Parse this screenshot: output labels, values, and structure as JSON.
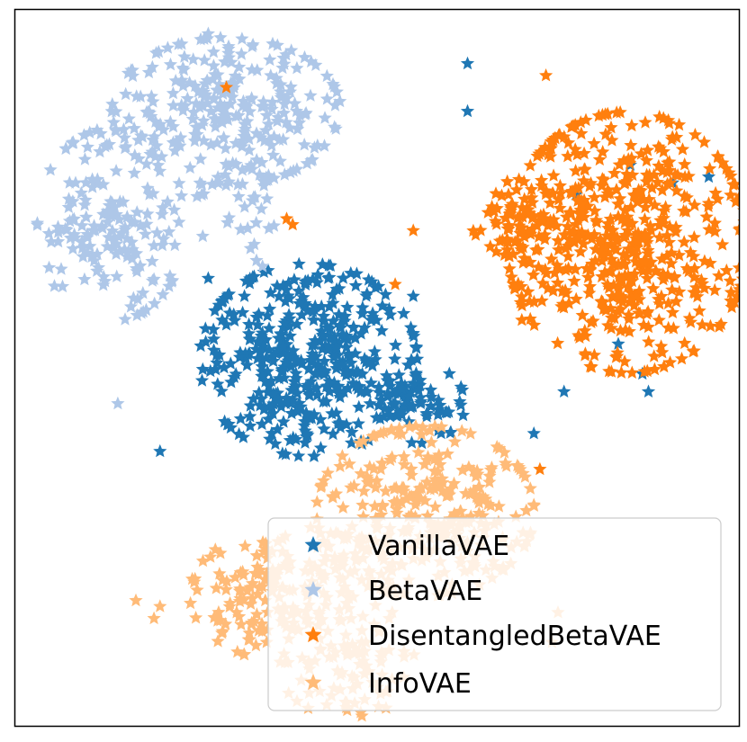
{
  "chart_data": {
    "type": "scatter",
    "marker": "star",
    "title": "",
    "xlabel": "",
    "ylabel": "",
    "xlim": [
      -60,
      60
    ],
    "ylim": [
      -60,
      60
    ],
    "grid": false,
    "ticks": false,
    "legend": {
      "placement": "lower-right",
      "entries": [
        "VanillaVAE",
        "BetaVAE",
        "DisentangledBetaVAE",
        "InfoVAE"
      ]
    },
    "series": [
      {
        "name": "VanillaVAE",
        "color": "#1f77b4",
        "clusters": [
          {
            "center": [
              -11.4,
              1.3
            ],
            "spread": [
              9.5,
              8.5
            ],
            "count": 420
          },
          {
            "center": [
              7.0,
              -6.0
            ],
            "spread": [
              4.0,
              3.5
            ],
            "count": 60
          }
        ],
        "outliers": [
          [
            -36,
            -14
          ],
          [
            -22,
            12
          ],
          [
            -28,
            15
          ],
          [
            6,
            12
          ],
          [
            15,
            43
          ],
          [
            15,
            51
          ],
          [
            33,
            29
          ],
          [
            42,
            34
          ],
          [
            49,
            31
          ],
          [
            55,
            32
          ],
          [
            31,
            -4
          ],
          [
            45,
            -4
          ],
          [
            44,
            -1
          ],
          [
            40,
            4
          ],
          [
            26,
            -11
          ]
        ]
      },
      {
        "name": "BetaVAE",
        "color": "#aec7e8",
        "clusters": [
          {
            "center": [
              -25,
              43
            ],
            "spread": [
              10,
              6.5
            ],
            "count": 260
          },
          {
            "center": [
              -44,
              24
            ],
            "spread": [
              6.5,
              8.5
            ],
            "count": 160
          },
          {
            "center": [
              -23,
              28
            ],
            "spread": [
              5,
              4
            ],
            "count": 30
          }
        ],
        "outliers": [
          [
            -28,
            56
          ],
          [
            -48,
            37
          ],
          [
            -19,
            17
          ],
          [
            -21,
            20
          ],
          [
            -20,
            18
          ],
          [
            -50,
            31
          ],
          [
            -43,
            -6
          ]
        ]
      },
      {
        "name": "DisentangledBetaVAE",
        "color": "#ff7f0e",
        "clusters": [
          {
            "center": [
              41.5,
              21
            ],
            "spread": [
              10.5,
              11.5
            ],
            "count": 520
          },
          {
            "center": [
              25,
              25
            ],
            "spread": [
              5,
              3.5
            ],
            "count": 80
          }
        ],
        "outliers": [
          [
            -25,
            47
          ],
          [
            -14,
            24
          ],
          [
            -15,
            25
          ],
          [
            6,
            23
          ],
          [
            3,
            14
          ],
          [
            24,
            8
          ],
          [
            27,
            -17
          ],
          [
            56,
            13
          ],
          [
            28,
            49
          ]
        ]
      },
      {
        "name": "InfoVAE",
        "color": "#ffbb78",
        "clusters": [
          {
            "center": [
              8,
              -24
            ],
            "spread": [
              9.5,
              7.5
            ],
            "count": 300
          },
          {
            "center": [
              -14,
              -38
            ],
            "spread": [
              9,
              6
            ],
            "count": 200
          },
          {
            "center": [
              -5,
              -50
            ],
            "spread": [
              6,
              4.5
            ],
            "count": 70
          }
        ],
        "outliers": [
          [
            -40,
            -39
          ],
          [
            -36,
            -40
          ],
          [
            -37,
            -42
          ],
          [
            30,
            -41
          ],
          [
            29,
            -46
          ],
          [
            18,
            -22
          ]
        ]
      }
    ]
  }
}
